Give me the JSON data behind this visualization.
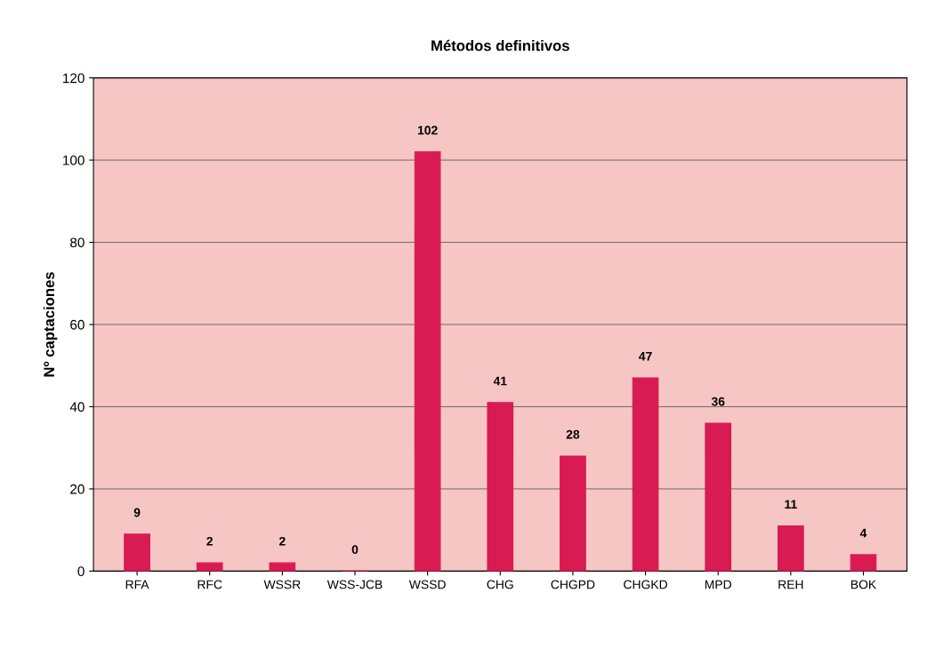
{
  "chart_data": {
    "type": "bar",
    "title": "Métodos definitivos",
    "ylabel": "Nº captaciones",
    "categories": [
      "RFA",
      "RFC",
      "WSSR",
      "WSS-JCB",
      "WSSD",
      "CHG",
      "CHGPD",
      "CHGKD",
      "MPD",
      "REH",
      "BOK"
    ],
    "values": [
      9,
      2,
      2,
      0,
      102,
      41,
      28,
      47,
      36,
      11,
      4
    ],
    "color": "#d81b52",
    "ylim": [
      0,
      120
    ],
    "yticks": [
      0,
      20,
      40,
      60,
      80,
      100,
      120
    ],
    "grid": "y",
    "data_labels": true
  }
}
